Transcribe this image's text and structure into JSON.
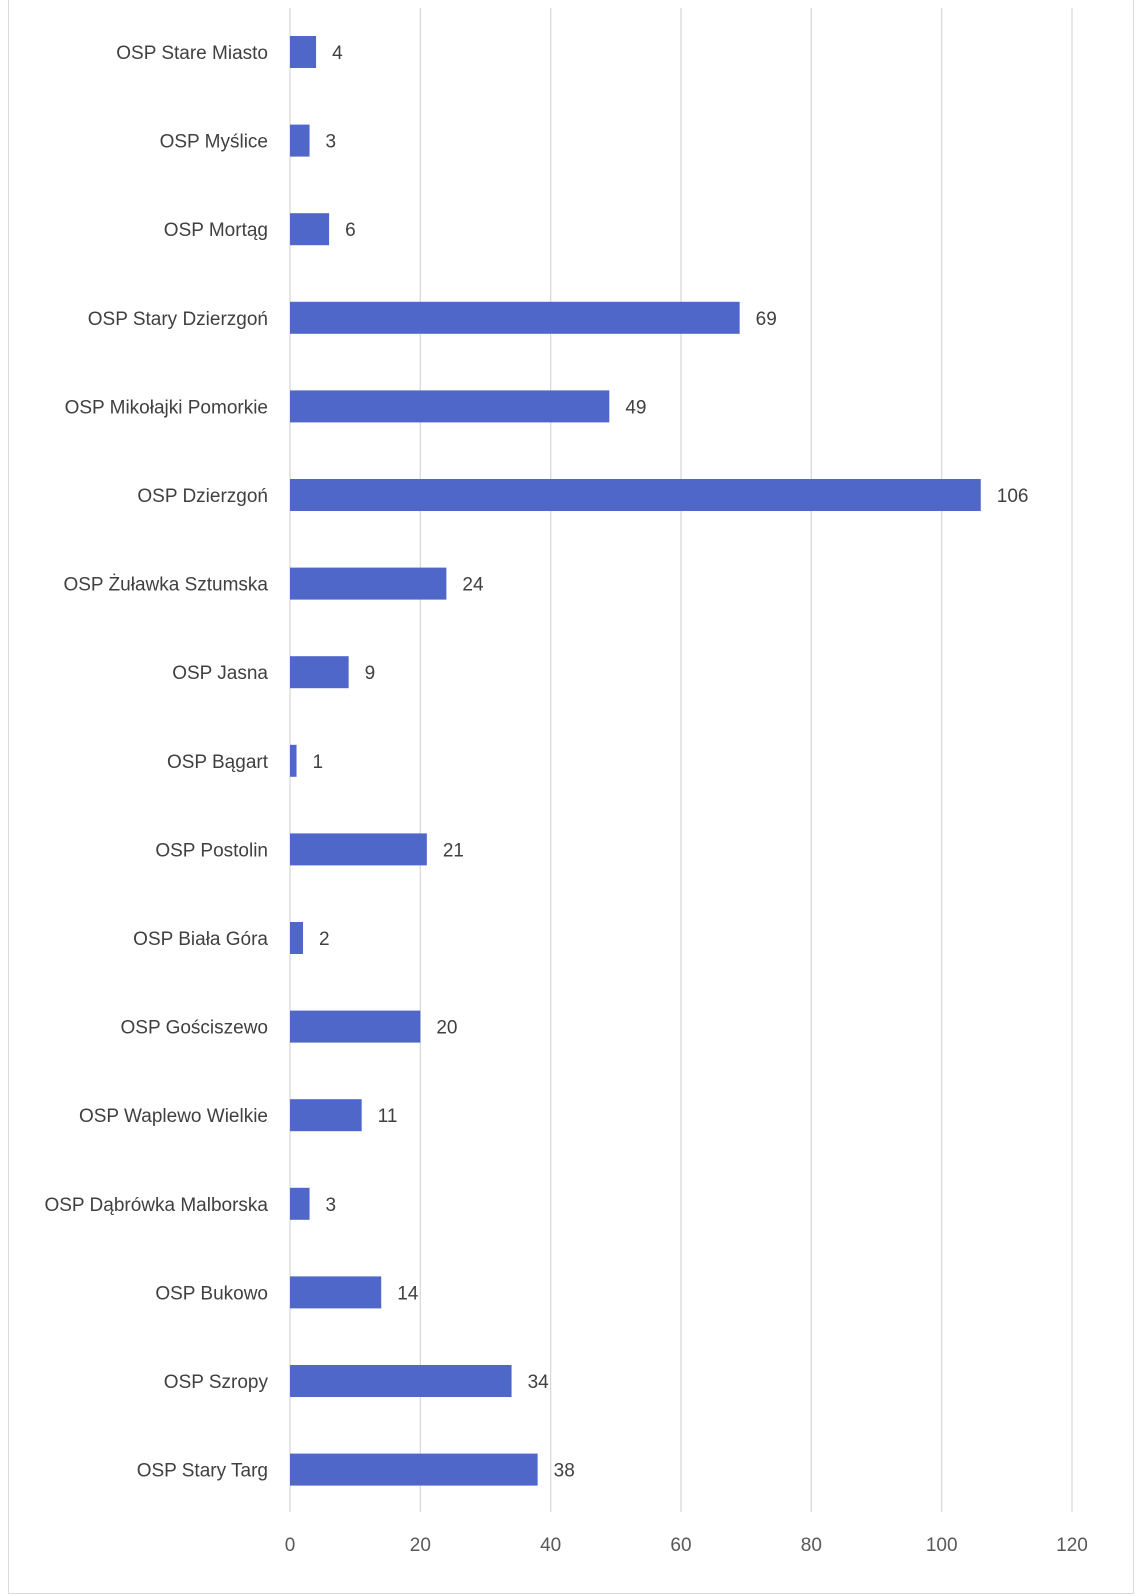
{
  "chart_data": {
    "type": "bar",
    "orientation": "horizontal",
    "title": "",
    "xlabel": "",
    "ylabel": "",
    "xlim": [
      0,
      120
    ],
    "ticks": [
      0,
      20,
      40,
      60,
      80,
      100,
      120
    ],
    "grid": "vertical",
    "legend": "none",
    "bar_color": "#4f67c9",
    "categories": [
      "OSP Stare Miasto",
      "OSP Myślice",
      "OSP Mortąg",
      "OSP Stary Dzierzgoń",
      "OSP Mikołajki Pomorkie",
      "OSP Dzierzgoń",
      "OSP Żuławka Sztumska",
      "OSP Jasna",
      "OSP Bągart",
      "OSP Postolin",
      "OSP Biała Góra",
      "OSP Gościszewo",
      "OSP Waplewo Wielkie",
      "OSP Dąbrówka Malborska",
      "OSP Bukowo",
      "OSP Szropy",
      "OSP Stary Targ"
    ],
    "values": [
      4,
      3,
      6,
      69,
      49,
      106,
      24,
      9,
      1,
      21,
      2,
      20,
      11,
      3,
      14,
      34,
      38
    ]
  }
}
